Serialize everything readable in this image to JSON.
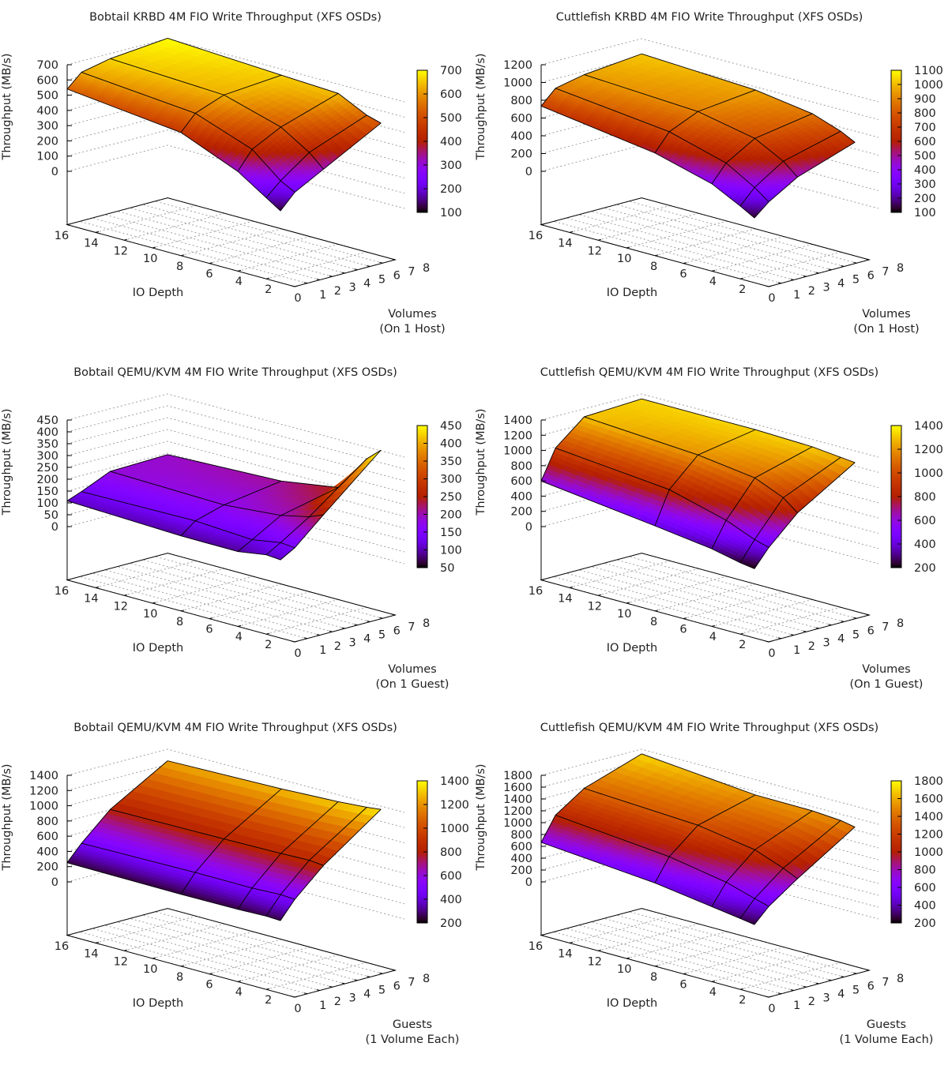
{
  "palette": "gnuplot rgbformulae 7,5,15",
  "chart_data": [
    {
      "type": "surface",
      "title": "Bobtail KRBD 4M FIO Write Throughput (XFS OSDs)",
      "zlabel": "Throughput (MB/s)",
      "xlabel": "IO Depth",
      "ylabel": [
        "Volumes",
        "(On 1 Host)"
      ],
      "io_depths": [
        1,
        2,
        4,
        8,
        16
      ],
      "volumes": [
        1,
        2,
        4,
        8
      ],
      "values": [
        [
          122,
          219,
          320,
          522
        ],
        [
          183,
          269,
          405,
          549
        ],
        [
          305,
          425,
          521,
          641
        ],
        [
          459,
          560,
          630,
          659
        ],
        [
          541,
          626,
          665,
          698
        ]
      ],
      "zticks": [
        "0",
        "100",
        "200",
        "300",
        "400",
        "500",
        "600",
        "700"
      ],
      "zrange": [
        0,
        700
      ],
      "cbticks": [
        "100",
        "200",
        "300",
        "400",
        "500",
        "600",
        "700"
      ],
      "cbrange": [
        100,
        700
      ],
      "xticks": [
        "16",
        "14",
        "12",
        "10",
        "8",
        "6",
        "4",
        "2"
      ],
      "yticks": [
        "0",
        "1",
        "2",
        "3",
        "4",
        "5",
        "6",
        "7",
        "8"
      ]
    },
    {
      "type": "surface",
      "title": "Cuttlefish KRBD 4M FIO Write Throughput (XFS OSDs)",
      "zlabel": "Throughput (MB/s)",
      "xlabel": "IO Depth",
      "ylabel": [
        "Volumes",
        "(On 1 Host)"
      ],
      "io_depths": [
        1,
        2,
        4,
        8,
        16
      ],
      "volumes": [
        1,
        2,
        4,
        8
      ],
      "values": [
        [
          130,
          267,
          460,
          679
        ],
        [
          220,
          386,
          595,
          760
        ],
        [
          384,
          574,
          765,
          871
        ],
        [
          556,
          752,
          893,
          963
        ],
        [
          736,
          893,
          960,
          1021
        ]
      ],
      "zticks": [
        "0",
        "200",
        "400",
        "600",
        "800",
        "1000",
        "1200"
      ],
      "zrange": [
        0,
        1200
      ],
      "cbticks": [
        "100",
        "200",
        "300",
        "400",
        "500",
        "600",
        "700",
        "800",
        "900",
        "1000",
        "1100"
      ],
      "cbrange": [
        100,
        1100
      ],
      "xticks": [
        "16",
        "14",
        "12",
        "10",
        "8",
        "6",
        "4",
        "2"
      ],
      "yticks": [
        "0",
        "1",
        "2",
        "3",
        "4",
        "5",
        "6",
        "7",
        "8"
      ]
    },
    {
      "type": "surface",
      "title": "Bobtail QEMU/KVM 4M FIO Write Throughput (XFS OSDs)",
      "zlabel": "Throughput (MB/s)",
      "xlabel": "IO Depth",
      "ylabel": [
        "Volumes",
        "(On 1 Guest)"
      ],
      "io_depths": [
        1,
        2,
        4,
        8,
        16
      ],
      "volumes": [
        1,
        2,
        4,
        8
      ],
      "values": [
        [
          105,
          140,
          247,
          455
        ],
        [
          110,
          145,
          222,
          402
        ],
        [
          91,
          125,
          195,
          248
        ],
        [
          92,
          139,
          174,
          210
        ],
        [
          109,
          132,
          185,
          191
        ]
      ],
      "zticks": [
        "0",
        "50",
        "100",
        "150",
        "200",
        "250",
        "300",
        "350",
        "400",
        "450"
      ],
      "zrange": [
        0,
        450
      ],
      "cbticks": [
        "50",
        "100",
        "150",
        "200",
        "250",
        "300",
        "350",
        "400",
        "450"
      ],
      "cbrange": [
        50,
        450
      ],
      "xticks": [
        "16",
        "14",
        "12",
        "10",
        "8",
        "6",
        "4",
        "2"
      ],
      "yticks": [
        "0",
        "1",
        "2",
        "3",
        "4",
        "5",
        "6",
        "7",
        "8"
      ]
    },
    {
      "type": "surface",
      "title": "Cuttlefish QEMU/KVM 4M FIO Write Throughput (XFS OSDs)",
      "zlabel": "Throughput (MB/s)",
      "xlabel": "IO Depth",
      "ylabel": [
        "Volumes",
        "(On 1 Guest)"
      ],
      "io_depths": [
        1,
        2,
        4,
        8,
        16
      ],
      "volumes": [
        1,
        2,
        4,
        8
      ],
      "values": [
        [
          210,
          439,
          793,
          1252
        ],
        [
          238,
          492,
          942,
          1270
        ],
        [
          320,
          643,
          1100,
          1307
        ],
        [
          418,
          844,
          1198,
          1328
        ],
        [
          599,
          983,
          1292,
          1326
        ]
      ],
      "zticks": [
        "0",
        "200",
        "400",
        "600",
        "800",
        "1000",
        "1200",
        "1400"
      ],
      "zrange": [
        0,
        1400
      ],
      "cbticks": [
        "200",
        "400",
        "600",
        "800",
        "1000",
        "1200",
        "1400"
      ],
      "cbrange": [
        200,
        1400
      ],
      "xticks": [
        "16",
        "14",
        "12",
        "10",
        "8",
        "6",
        "4",
        "2"
      ],
      "yticks": [
        "0",
        "1",
        "2",
        "3",
        "4",
        "5",
        "6",
        "7",
        "8"
      ]
    },
    {
      "type": "surface",
      "title": "Bobtail QEMU/KVM 4M FIO Write Throughput (XFS OSDs)",
      "zlabel": "Throughput (MB/s)",
      "xlabel": "IO Depth",
      "ylabel": [
        "Guests",
        "(1 Volume Each)"
      ],
      "io_depths": [
        1,
        2,
        4,
        8,
        16
      ],
      "volumes": [
        1,
        2,
        4,
        8
      ],
      "values": [
        [
          255,
          484,
          828,
          1363
        ],
        [
          263,
          496,
          846,
          1340
        ],
        [
          251,
          480,
          834,
          1312
        ],
        [
          245,
          481,
          821,
          1277
        ],
        [
          253,
          458,
          802,
          1239
        ]
      ],
      "zticks": [
        "0",
        "200",
        "400",
        "600",
        "800",
        "1000",
        "1200",
        "1400"
      ],
      "zrange": [
        0,
        1400
      ],
      "cbticks": [
        "200",
        "400",
        "600",
        "800",
        "1000",
        "1200",
        "1400"
      ],
      "cbrange": [
        200,
        1400
      ],
      "xticks": [
        "16",
        "14",
        "12",
        "10",
        "8",
        "6",
        "4",
        "2"
      ],
      "yticks": [
        "0",
        "1",
        "2",
        "3",
        "4",
        "5",
        "6",
        "7",
        "8"
      ]
    },
    {
      "type": "surface",
      "title": "Cuttlefish QEMU/KVM 4M FIO Write Throughput (XFS OSDs)",
      "zlabel": "Throughput (MB/s)",
      "xlabel": "IO Depth",
      "ylabel": [
        "Guests",
        "(1 Volume Each)"
      ],
      "io_depths": [
        1,
        2,
        4,
        8,
        16
      ],
      "volumes": [
        1,
        2,
        4,
        8
      ],
      "values": [
        [
          261,
          503,
          841,
          1455
        ],
        [
          299,
          571,
          954,
          1500
        ],
        [
          368,
          715,
          1134,
          1533
        ],
        [
          507,
          885,
          1287,
          1539
        ],
        [
          668,
          1064,
          1387,
          1710
        ]
      ],
      "zticks": [
        "0",
        "200",
        "400",
        "600",
        "800",
        "1000",
        "1200",
        "1400",
        "1600",
        "1800"
      ],
      "zrange": [
        0,
        1800
      ],
      "cbticks": [
        "200",
        "400",
        "600",
        "800",
        "1000",
        "1200",
        "1400",
        "1600",
        "1800"
      ],
      "cbrange": [
        200,
        1800
      ],
      "xticks": [
        "16",
        "14",
        "12",
        "10",
        "8",
        "6",
        "4",
        "2"
      ],
      "yticks": [
        "0",
        "1",
        "2",
        "3",
        "4",
        "5",
        "6",
        "7",
        "8"
      ]
    }
  ]
}
